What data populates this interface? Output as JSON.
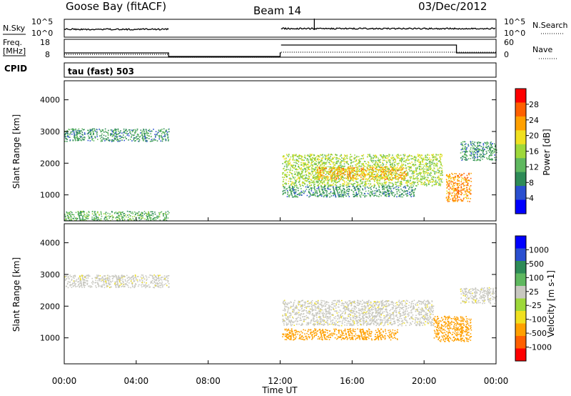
{
  "header": {
    "left_title": "Goose Bay (fitACF)",
    "center_title": "Beam 14",
    "right_title": "03/Dec/2012"
  },
  "panel_top": {
    "left_label": "N.Sky",
    "right_label": "N.Search",
    "left_ticks": [
      "10^5",
      "10^0"
    ],
    "right_ticks": [
      "10^5",
      "10^0"
    ]
  },
  "panel_freq": {
    "left_label_line1": "Freq.",
    "left_label_line2": "[MHz]",
    "right_label": "Nave",
    "left_ticks": [
      "18",
      "8"
    ],
    "right_ticks": [
      "60",
      "0"
    ]
  },
  "cpid_label": "CPID",
  "cpid_text": "tau (fast) 503",
  "colors": {
    "power_scale": [
      "#0000ff",
      "#2a4fd0",
      "#2e8b57",
      "#5fb85f",
      "#9ed83a",
      "#f0e020",
      "#ffa000",
      "#ff6000",
      "#ff0000"
    ],
    "velocity_scale": [
      "#ff0000",
      "#ff6000",
      "#ffa000",
      "#f0e020",
      "#9ed83a",
      "#c8c8c0",
      "#5fb85f",
      "#2e8b57",
      "#2a4fd0",
      "#0000ff"
    ]
  },
  "chart_data": [
    {
      "type": "heatmap",
      "name": "power",
      "ylabel": "Slant Range [km]",
      "xlim": [
        0,
        24
      ],
      "ylim": [
        180,
        4600
      ],
      "yticks": [
        1000,
        2000,
        3000,
        4000
      ],
      "colorbar_label": "Power [dB]",
      "colorbar_ticks": [
        "28",
        "24",
        "20",
        "16",
        "12",
        "8",
        "4"
      ],
      "regions": [
        {
          "t0": 0.0,
          "t1": 5.8,
          "r0": 2700,
          "r1": 3100,
          "value": 8
        },
        {
          "t0": 0.0,
          "t1": 5.8,
          "r0": 200,
          "r1": 500,
          "value": 10
        },
        {
          "t0": 12.1,
          "t1": 21.0,
          "r0": 1300,
          "r1": 2300,
          "value": 14
        },
        {
          "t0": 14.0,
          "t1": 19.0,
          "r0": 1500,
          "r1": 1900,
          "value": 20
        },
        {
          "t0": 12.1,
          "t1": 19.5,
          "r0": 950,
          "r1": 1300,
          "value": 8
        },
        {
          "t0": 21.2,
          "t1": 22.6,
          "r0": 800,
          "r1": 1700,
          "value": 22
        },
        {
          "t0": 22.0,
          "t1": 24.0,
          "r0": 2100,
          "r1": 2700,
          "value": 8
        }
      ]
    },
    {
      "type": "heatmap",
      "name": "velocity",
      "ylabel": "Slant Range [km]",
      "xlabel": "Time UT",
      "xlim": [
        0,
        24
      ],
      "ylim": [
        180,
        4600
      ],
      "xtick_labels": [
        "00:00",
        "04:00",
        "08:00",
        "12:00",
        "16:00",
        "20:00",
        "00:00"
      ],
      "yticks": [
        1000,
        2000,
        3000,
        4000
      ],
      "colorbar_label": "Velocity [m s-1]",
      "colorbar_ticks": [
        "1000",
        "500",
        "100",
        "25",
        "-25",
        "-100",
        "-500",
        "-1000"
      ],
      "regions": [
        {
          "t0": 0.0,
          "t1": 5.8,
          "r0": 2600,
          "r1": 3000,
          "value": 0
        },
        {
          "t0": 12.1,
          "t1": 20.5,
          "r0": 1400,
          "r1": 2200,
          "value": 0
        },
        {
          "t0": 12.1,
          "t1": 18.5,
          "r0": 950,
          "r1": 1300,
          "value": -150
        },
        {
          "t0": 20.5,
          "t1": 22.6,
          "r0": 900,
          "r1": 1700,
          "value": -200
        },
        {
          "t0": 22.0,
          "t1": 24.0,
          "r0": 2100,
          "r1": 2600,
          "value": 0
        }
      ]
    }
  ]
}
